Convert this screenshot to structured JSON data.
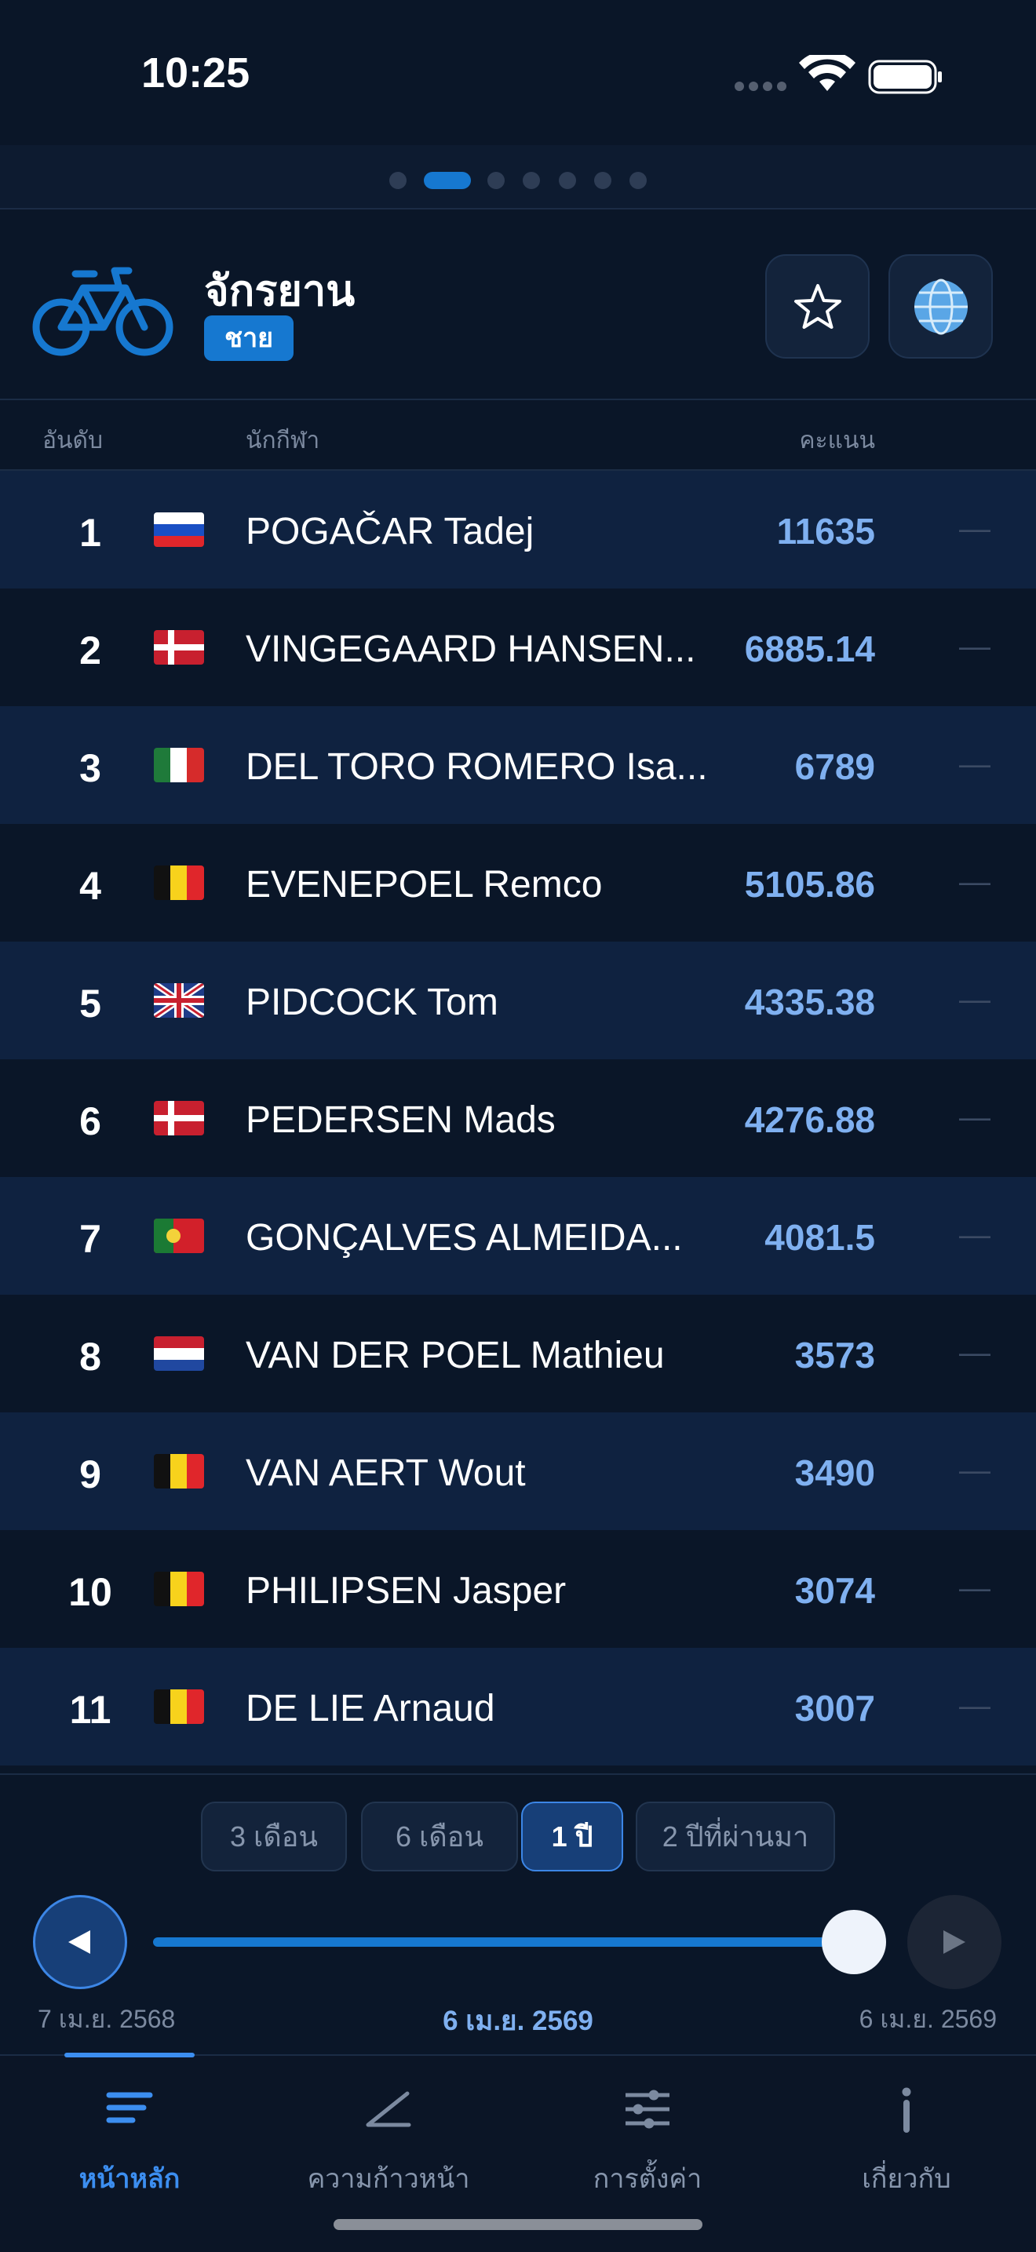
{
  "status": {
    "time": "10:25"
  },
  "header": {
    "title": "จักรยาน",
    "tag": "ชาย"
  },
  "table": {
    "columns": [
      "อันดับ",
      "นักกีฬา",
      "คะแนน"
    ],
    "rows": [
      {
        "rank": 1,
        "name": "POGAČAR Tadej",
        "points": 11635,
        "change": "—"
      },
      {
        "rank": 2,
        "name": "VINGEGAARD HANSEN...",
        "points": 6885.14,
        "change": "—"
      },
      {
        "rank": 3,
        "name": "DEL TORO ROMERO Isa...",
        "points": 6789,
        "change": "—"
      },
      {
        "rank": 4,
        "name": "EVENEPOEL Remco",
        "points": 5105.86,
        "change": "—"
      },
      {
        "rank": 5,
        "name": "PIDCOCK Tom",
        "points": 4335.38,
        "change": "—"
      },
      {
        "rank": 6,
        "name": "PEDERSEN Mads",
        "points": 4276.88,
        "change": "—"
      },
      {
        "rank": 7,
        "name": "GONÇALVES ALMEIDA...",
        "points": 4081.5,
        "change": "—"
      },
      {
        "rank": 8,
        "name": "VAN DER POEL Mathieu",
        "points": 3573,
        "change": "—"
      },
      {
        "rank": 9,
        "name": "VAN AERT Wout",
        "points": 3490,
        "change": "—"
      },
      {
        "rank": 10,
        "name": "PHILIPSEN Jasper",
        "points": 3074,
        "change": "—"
      },
      {
        "rank": 11,
        "name": "DE LIE Arnaud",
        "points": 3007,
        "change": "—"
      }
    ]
  },
  "range": {
    "options": [
      "3 เดือน",
      "6 เดือน",
      "1 ปี",
      "2 ปีที่ผ่านมา"
    ],
    "active": 2
  },
  "slider": {
    "start": "7 เม.ย. 2568",
    "current": "6 เม.ย. 2569",
    "end": "6 เม.ย. 2569"
  },
  "tabs": {
    "items": [
      "หน้าหลัก",
      "ความก้าวหน้า",
      "การตั้งค่า",
      "เกี่ยวกับ"
    ],
    "active": 0
  }
}
